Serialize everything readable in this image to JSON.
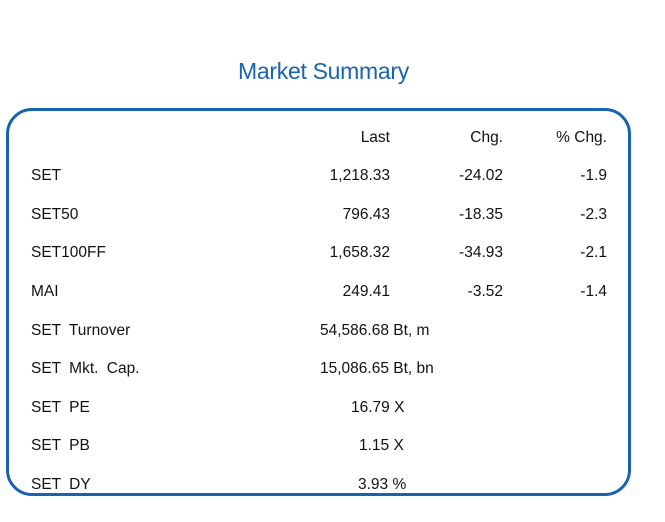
{
  "title": "Market Summary",
  "columns": {
    "last": "Last",
    "chg": "Chg.",
    "pct_chg": "% Chg."
  },
  "indices": [
    {
      "name": "SET",
      "last": "1,218.33",
      "chg": "-24.02",
      "pct_chg": "-1.9"
    },
    {
      "name": "SET50",
      "last": "796.43",
      "chg": "-18.35",
      "pct_chg": "-2.3"
    },
    {
      "name": "SET100FF",
      "last": "1,658.32",
      "chg": "-34.93",
      "pct_chg": "-2.1"
    },
    {
      "name": "MAI",
      "last": "249.41",
      "chg": "-3.52",
      "pct_chg": "-1.4"
    }
  ],
  "stats": [
    {
      "name": "SET Turnover",
      "value": "54,586.68 Bt, m"
    },
    {
      "name": "SET Mkt. Cap.",
      "value": "15,086.65 Bt, bn"
    },
    {
      "name": "SET PE",
      "value": "16.79 X"
    },
    {
      "name": "SET PB",
      "value": "1.15 X"
    },
    {
      "name": "SET DY",
      "value": "3.93 %"
    }
  ]
}
